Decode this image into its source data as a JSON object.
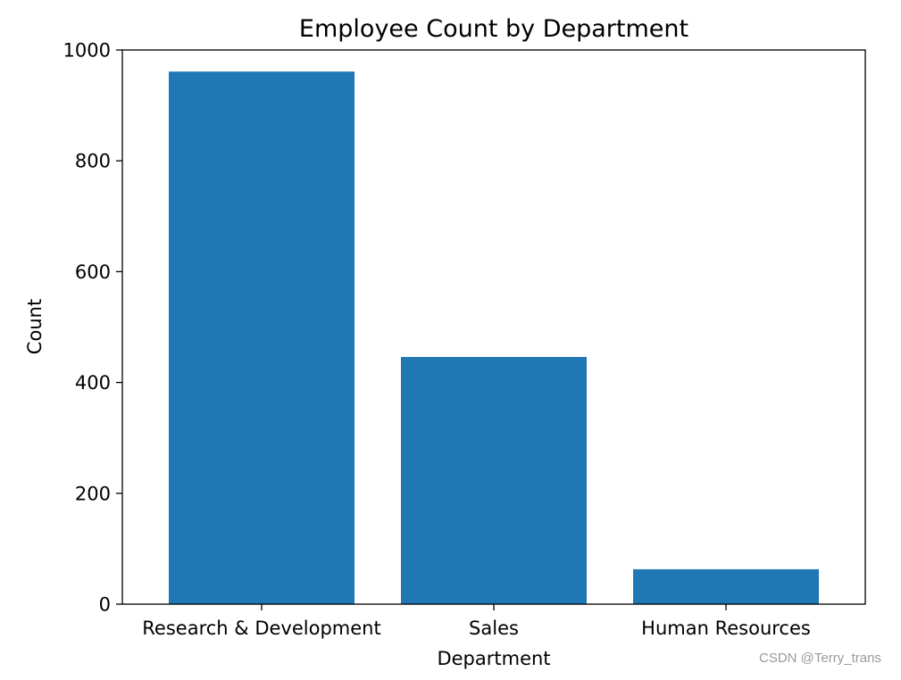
{
  "chart_data": {
    "type": "bar",
    "title": "Employee Count by Department",
    "xlabel": "Department",
    "ylabel": "Count",
    "categories": [
      "Research & Development",
      "Sales",
      "Human Resources"
    ],
    "values": [
      961,
      446,
      63
    ],
    "ylim": [
      0,
      1000
    ],
    "yticks": [
      0,
      200,
      400,
      600,
      800,
      1000
    ],
    "bar_color": "#1f77b4",
    "grid": false,
    "legend": "none"
  },
  "watermark": "CSDN @Terry_trans"
}
